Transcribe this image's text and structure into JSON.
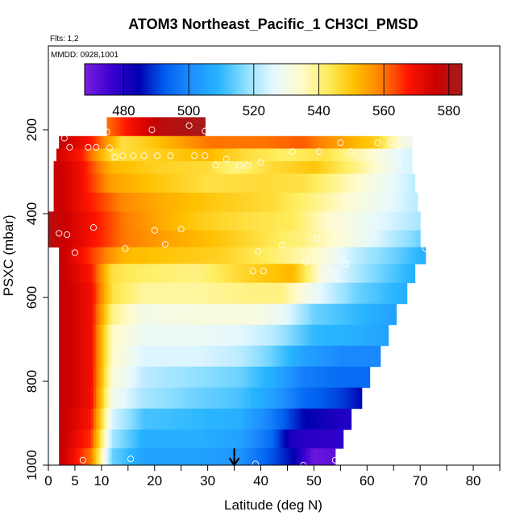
{
  "chart_data": {
    "type": "heatmap",
    "title": "ATOM3 Northeast_Pacific_1 CH3Cl_PMSD",
    "annotations": {
      "flights": "Flts: 1,2",
      "mmdd": "MMDD: 0928,1001"
    },
    "xlabel": "Latitude (deg N)",
    "ylabel": "PSXC (mbar)",
    "xlim": [
      0,
      85
    ],
    "ylim": [
      1000,
      0
    ],
    "x_ticks": [
      0,
      5,
      10,
      20,
      30,
      40,
      50,
      60,
      70,
      80
    ],
    "x_tick_labels": [
      "0",
      "5",
      "10",
      "20",
      "30",
      "40",
      "50",
      "60",
      "70",
      "80"
    ],
    "y_ticks": [
      200,
      400,
      600,
      800,
      1000
    ],
    "y_tick_labels": [
      "200",
      "400",
      "600",
      "800",
      "1000"
    ],
    "colorbar": {
      "min": 468,
      "max": 584,
      "ticks": [
        480,
        500,
        520,
        540,
        560,
        580
      ],
      "tick_labels": [
        "480",
        "500",
        "520",
        "540",
        "560",
        "580"
      ],
      "colors": [
        "#7b1fe0",
        "#3a00d0",
        "#0000b0",
        "#0060f0",
        "#1e90ff",
        "#29b6ff",
        "#8fdfff",
        "#e6f8ff",
        "#fffbd0",
        "#ffee60",
        "#ffc000",
        "#ff8000",
        "#ff1500",
        "#cc0000",
        "#a51c1c"
      ]
    },
    "bands": [
      {
        "p_top": 170,
        "p_bot": 215,
        "lat_max": 29.5,
        "anchors": [
          [
            11,
            560
          ],
          [
            17,
            572
          ],
          [
            22,
            580
          ],
          [
            29,
            583
          ]
        ]
      },
      {
        "p_top": 215,
        "p_bot": 245,
        "lat_max": 68.5,
        "anchors": [
          [
            2,
            578
          ],
          [
            8,
            568
          ],
          [
            14,
            545
          ],
          [
            20,
            550
          ],
          [
            30,
            560
          ],
          [
            40,
            560
          ],
          [
            48,
            562
          ],
          [
            55,
            555
          ],
          [
            62,
            548
          ],
          [
            67,
            530
          ]
        ]
      },
      {
        "p_top": 245,
        "p_bot": 275,
        "lat_max": 68.5,
        "anchors": [
          [
            1.5,
            575
          ],
          [
            6,
            568
          ],
          [
            12,
            545
          ],
          [
            20,
            548
          ],
          [
            30,
            552
          ],
          [
            38,
            545
          ],
          [
            45,
            542
          ],
          [
            52,
            545
          ],
          [
            60,
            535
          ],
          [
            67,
            525
          ]
        ]
      },
      {
        "p_top": 275,
        "p_bot": 305,
        "lat_max": 68.5,
        "anchors": [
          [
            1,
            578
          ],
          [
            6,
            570
          ],
          [
            12,
            552
          ],
          [
            20,
            548
          ],
          [
            30,
            546
          ],
          [
            35,
            540
          ],
          [
            42,
            546
          ],
          [
            50,
            550
          ],
          [
            58,
            540
          ],
          [
            67,
            525
          ]
        ]
      },
      {
        "p_top": 305,
        "p_bot": 350,
        "lat_max": 69,
        "anchors": [
          [
            1,
            578
          ],
          [
            6,
            570
          ],
          [
            12,
            555
          ],
          [
            20,
            550
          ],
          [
            30,
            545
          ],
          [
            40,
            546
          ],
          [
            48,
            545
          ],
          [
            55,
            538
          ],
          [
            62,
            530
          ],
          [
            69,
            522
          ]
        ]
      },
      {
        "p_top": 350,
        "p_bot": 395,
        "lat_max": 69.5,
        "anchors": [
          [
            1,
            578
          ],
          [
            6,
            570
          ],
          [
            14,
            558
          ],
          [
            22,
            553
          ],
          [
            32,
            549
          ],
          [
            42,
            546
          ],
          [
            50,
            540
          ],
          [
            58,
            532
          ],
          [
            65,
            526
          ],
          [
            69,
            522
          ]
        ]
      },
      {
        "p_top": 395,
        "p_bot": 440,
        "lat_max": 70,
        "anchors": [
          [
            0,
            580
          ],
          [
            6,
            572
          ],
          [
            14,
            560
          ],
          [
            22,
            553
          ],
          [
            30,
            548
          ],
          [
            38,
            545
          ],
          [
            46,
            543
          ],
          [
            52,
            535
          ],
          [
            60,
            528
          ],
          [
            70,
            520
          ]
        ]
      },
      {
        "p_top": 440,
        "p_bot": 480,
        "lat_max": 70,
        "anchors": [
          [
            0,
            580
          ],
          [
            6,
            572
          ],
          [
            14,
            560
          ],
          [
            22,
            555
          ],
          [
            32,
            550
          ],
          [
            40,
            545
          ],
          [
            48,
            540
          ],
          [
            55,
            533
          ],
          [
            62,
            525
          ],
          [
            70,
            515
          ]
        ]
      },
      {
        "p_top": 480,
        "p_bot": 520,
        "lat_max": 71,
        "anchors": [
          [
            2,
            578
          ],
          [
            8,
            565
          ],
          [
            14,
            552
          ],
          [
            22,
            550
          ],
          [
            32,
            548
          ],
          [
            42,
            542
          ],
          [
            50,
            535
          ],
          [
            58,
            522
          ],
          [
            65,
            515
          ],
          [
            71,
            508
          ]
        ]
      },
      {
        "p_top": 520,
        "p_bot": 565,
        "lat_max": 69,
        "anchors": [
          [
            2,
            578
          ],
          [
            8,
            568
          ],
          [
            12,
            545
          ],
          [
            18,
            542
          ],
          [
            28,
            540
          ],
          [
            38,
            548
          ],
          [
            46,
            552
          ],
          [
            52,
            530
          ],
          [
            60,
            518
          ],
          [
            69,
            508
          ]
        ]
      },
      {
        "p_top": 565,
        "p_bot": 615,
        "lat_max": 67.5,
        "anchors": [
          [
            2,
            578
          ],
          [
            8,
            570
          ],
          [
            12,
            545
          ],
          [
            18,
            538
          ],
          [
            28,
            538
          ],
          [
            38,
            540
          ],
          [
            44,
            540
          ],
          [
            50,
            528
          ],
          [
            58,
            515
          ],
          [
            67,
            508
          ]
        ]
      },
      {
        "p_top": 615,
        "p_bot": 665,
        "lat_max": 65.5,
        "anchors": [
          [
            2,
            578
          ],
          [
            8,
            570
          ],
          [
            12,
            540
          ],
          [
            18,
            530
          ],
          [
            28,
            532
          ],
          [
            38,
            532
          ],
          [
            44,
            528
          ],
          [
            50,
            515
          ],
          [
            58,
            510
          ],
          [
            65,
            505
          ]
        ]
      },
      {
        "p_top": 665,
        "p_bot": 715,
        "lat_max": 64,
        "anchors": [
          [
            2,
            578
          ],
          [
            8,
            570
          ],
          [
            12,
            535
          ],
          [
            18,
            528
          ],
          [
            28,
            528
          ],
          [
            36,
            526
          ],
          [
            42,
            522
          ],
          [
            50,
            510
          ],
          [
            58,
            508
          ],
          [
            64,
            505
          ]
        ]
      },
      {
        "p_top": 715,
        "p_bot": 765,
        "lat_max": 62.5,
        "anchors": [
          [
            2,
            578
          ],
          [
            8,
            570
          ],
          [
            12,
            535
          ],
          [
            18,
            525
          ],
          [
            28,
            525
          ],
          [
            36,
            522
          ],
          [
            42,
            515
          ],
          [
            48,
            505
          ],
          [
            55,
            500
          ],
          [
            62,
            500
          ]
        ]
      },
      {
        "p_top": 765,
        "p_bot": 815,
        "lat_max": 60.5,
        "anchors": [
          [
            2,
            578
          ],
          [
            8,
            570
          ],
          [
            12,
            533
          ],
          [
            18,
            522
          ],
          [
            28,
            518
          ],
          [
            36,
            515
          ],
          [
            42,
            508
          ],
          [
            48,
            498
          ],
          [
            55,
            495
          ],
          [
            60,
            495
          ]
        ]
      },
      {
        "p_top": 815,
        "p_bot": 865,
        "lat_max": 59,
        "anchors": [
          [
            2,
            578
          ],
          [
            8,
            570
          ],
          [
            12,
            530
          ],
          [
            18,
            520
          ],
          [
            28,
            515
          ],
          [
            36,
            512
          ],
          [
            42,
            505
          ],
          [
            48,
            495
          ],
          [
            55,
            490
          ],
          [
            59,
            485
          ]
        ]
      },
      {
        "p_top": 865,
        "p_bot": 915,
        "lat_max": 57,
        "anchors": [
          [
            2,
            578
          ],
          [
            8,
            568
          ],
          [
            12,
            525
          ],
          [
            18,
            512
          ],
          [
            28,
            510
          ],
          [
            36,
            508
          ],
          [
            42,
            498
          ],
          [
            48,
            485
          ],
          [
            55,
            480
          ],
          [
            57,
            480
          ]
        ]
      },
      {
        "p_top": 915,
        "p_bot": 960,
        "lat_max": 55.5,
        "anchors": [
          [
            2,
            578
          ],
          [
            8,
            565
          ],
          [
            12,
            520
          ],
          [
            18,
            508
          ],
          [
            28,
            508
          ],
          [
            36,
            505
          ],
          [
            42,
            495
          ],
          [
            46,
            480
          ],
          [
            52,
            478
          ],
          [
            55,
            478
          ]
        ]
      },
      {
        "p_top": 960,
        "p_bot": 1005,
        "lat_max": 54,
        "anchors": [
          [
            2,
            578
          ],
          [
            8,
            560
          ],
          [
            12,
            515
          ],
          [
            18,
            505
          ],
          [
            28,
            505
          ],
          [
            36,
            502
          ],
          [
            42,
            492
          ],
          [
            46,
            485
          ],
          [
            50,
            470
          ],
          [
            54,
            472
          ]
        ]
      }
    ],
    "points": [
      [
        11,
        205
      ],
      [
        19.5,
        200
      ],
      [
        26.5,
        190
      ],
      [
        29.5,
        203
      ],
      [
        3,
        220
      ],
      [
        4,
        242
      ],
      [
        7.5,
        242
      ],
      [
        9,
        242
      ],
      [
        11.5,
        243
      ],
      [
        55,
        231
      ],
      [
        62,
        231
      ],
      [
        64.5,
        231
      ],
      [
        12.5,
        265
      ],
      [
        14,
        262
      ],
      [
        16,
        262
      ],
      [
        18,
        262
      ],
      [
        20.5,
        262
      ],
      [
        23,
        262
      ],
      [
        27.5,
        262
      ],
      [
        29.5,
        262
      ],
      [
        33.5,
        270
      ],
      [
        46,
        252
      ],
      [
        51,
        252
      ],
      [
        57,
        252
      ],
      [
        31.5,
        284
      ],
      [
        36,
        285
      ],
      [
        37.5,
        285
      ],
      [
        40,
        278
      ],
      [
        2,
        447
      ],
      [
        3.5,
        450
      ],
      [
        8.5,
        433
      ],
      [
        20,
        440
      ],
      [
        25,
        437
      ],
      [
        5,
        493
      ],
      [
        14.5,
        483
      ],
      [
        22,
        473
      ],
      [
        39.5,
        490
      ],
      [
        44,
        475
      ],
      [
        48.5,
        515
      ],
      [
        50.5,
        459
      ],
      [
        56,
        520
      ],
      [
        71,
        483
      ],
      [
        38.5,
        537
      ],
      [
        40.5,
        537
      ],
      [
        53,
        542
      ],
      [
        1,
        980
      ],
      [
        6.5,
        988
      ],
      [
        15.5,
        985
      ],
      [
        39,
        997
      ],
      [
        48,
        1000
      ],
      [
        54,
        988
      ]
    ],
    "arrow_marker": {
      "x": 35,
      "y_from": 960,
      "y_to": 1000
    }
  }
}
